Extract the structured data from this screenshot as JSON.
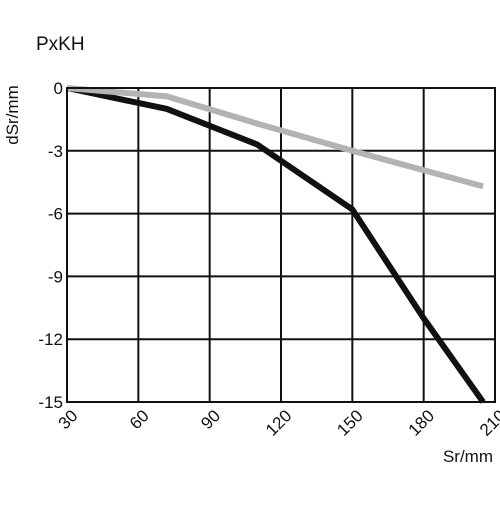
{
  "chart_data": {
    "type": "line",
    "title": "PxKH",
    "xlabel": "Sr/mm",
    "ylabel": "dSr/mm",
    "xlim": [
      30,
      210
    ],
    "ylim": [
      -15,
      0
    ],
    "x_ticks": [
      30,
      60,
      90,
      120,
      150,
      180,
      210
    ],
    "y_ticks": [
      0,
      -3,
      -6,
      -9,
      -12,
      -15
    ],
    "x_tick_labels": [
      "30",
      "60",
      "90",
      "120",
      "150",
      "180",
      "210"
    ],
    "y_tick_labels": [
      "0",
      "-3",
      "-6",
      "-9",
      "-12",
      "-15"
    ],
    "grid": true,
    "legend": "none",
    "series": [
      {
        "color": "#111111",
        "x": [
          30,
          72,
          110,
          150,
          180,
          205
        ],
        "y": [
          0,
          -1.0,
          -2.7,
          -5.8,
          -11.0,
          -15.0
        ]
      },
      {
        "color": "#b3b3b3",
        "x": [
          30,
          72,
          110,
          150,
          205
        ],
        "y": [
          0,
          -0.4,
          -1.7,
          -3.0,
          -4.7
        ]
      }
    ]
  }
}
